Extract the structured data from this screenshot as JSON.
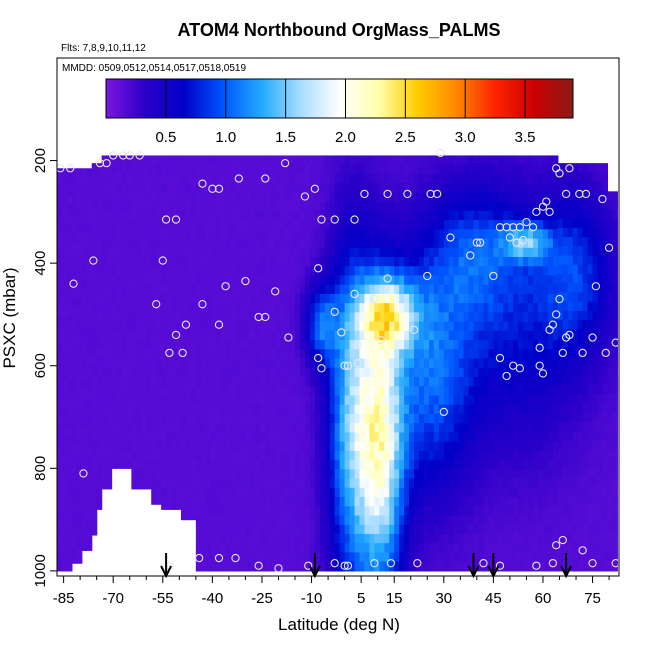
{
  "chart_data": {
    "type": "heatmap",
    "title": "ATOM4 Northbound OrgMass_PALMS",
    "flights_note": "Flts: 7,8,9,10,11,12",
    "dates_note": "MMDD: 0509,0512,0514,0517,0518,0519",
    "xlabel": "Latitude (deg N)",
    "ylabel": "PSXC (mbar)",
    "xlim": [
      -87,
      83
    ],
    "ylim": [
      1010,
      0
    ],
    "x_ticks": [
      -85,
      -70,
      -55,
      -40,
      -25,
      -10,
      5,
      15,
      30,
      45,
      60,
      75
    ],
    "x_tick_labels": [
      "-85",
      "-70",
      "-55",
      "-40",
      "-25",
      "-10",
      "5",
      "15",
      "30",
      "45",
      "60",
      "75"
    ],
    "y_ticks": [
      200,
      400,
      600,
      800,
      1000
    ],
    "y_tick_labels": [
      "200",
      "400",
      "600",
      "800",
      "1000"
    ],
    "colorbar": {
      "min": 0.0,
      "max": 3.9,
      "ticks": [
        0.5,
        1.0,
        1.5,
        2.0,
        2.5,
        3.0,
        3.5
      ],
      "tick_labels": [
        "0.5",
        "1.0",
        "1.5",
        "2.0",
        "2.5",
        "3.0",
        "3.5"
      ],
      "colors": [
        "#7b16e0",
        "#2a00c8",
        "#0000c8",
        "#0055ff",
        "#22aaff",
        "#a8dcff",
        "#ffffff",
        "#ffffaa",
        "#ffcc00",
        "#ff8800",
        "#ff2200",
        "#cc0000",
        "#8b1a1a"
      ]
    },
    "arrows_latitude": [
      -54,
      -9,
      39,
      45,
      67
    ],
    "field": {
      "background_value": 0.15,
      "plumes": [
        {
          "lat": -7,
          "p": 520,
          "value": 0.8,
          "sigma_lat": 3.5,
          "sigma_p": 55
        },
        {
          "lat": 2,
          "p": 700,
          "value": 1.2,
          "sigma_lat": 5,
          "sigma_p": 230
        },
        {
          "lat": 11,
          "p": 760,
          "value": 1.7,
          "sigma_lat": 5,
          "sigma_p": 200
        },
        {
          "lat": 13,
          "p": 500,
          "value": 1.45,
          "sigma_lat": 6,
          "sigma_p": 50
        },
        {
          "lat": 26,
          "p": 600,
          "value": 0.85,
          "sigma_lat": 9,
          "sigma_p": 170
        },
        {
          "lat": 40,
          "p": 380,
          "value": 0.55,
          "sigma_lat": 9,
          "sigma_p": 90
        },
        {
          "lat": 55,
          "p": 360,
          "value": 0.95,
          "sigma_lat": 5,
          "sigma_p": 25
        },
        {
          "lat": 70,
          "p": 420,
          "value": 0.6,
          "sigma_lat": 8,
          "sigma_p": 110
        },
        {
          "lat": 52,
          "p": 520,
          "value": 0.5,
          "sigma_lat": 14,
          "sigma_p": 170
        }
      ],
      "coverage": [
        [
          -87,
          215,
          1000
        ],
        [
          -85,
          215,
          1000
        ],
        [
          -83,
          215,
          985
        ],
        [
          -80,
          215,
          960
        ],
        [
          -77,
          205,
          930
        ],
        [
          -75,
          205,
          880
        ],
        [
          -73,
          190,
          840
        ],
        [
          -70,
          190,
          800
        ],
        [
          -64,
          190,
          840
        ],
        [
          -58,
          190,
          870
        ],
        [
          -55,
          190,
          880
        ],
        [
          -50,
          190,
          900
        ],
        [
          -45,
          190,
          1000
        ],
        [
          60,
          190,
          1000
        ],
        [
          64,
          205,
          1000
        ],
        [
          69,
          205,
          1000
        ],
        [
          75,
          205,
          1000
        ],
        [
          80,
          260,
          1000
        ],
        [
          82,
          260,
          1000
        ]
      ]
    },
    "points": [
      [
        -86,
        215
      ],
      [
        -83,
        215
      ],
      [
        -74,
        205
      ],
      [
        -72,
        205
      ],
      [
        -70,
        190
      ],
      [
        -67,
        190
      ],
      [
        -65,
        190
      ],
      [
        -62,
        190
      ],
      [
        -54,
        315
      ],
      [
        -51,
        315
      ],
      [
        -43,
        245
      ],
      [
        -40,
        255
      ],
      [
        -38,
        255
      ],
      [
        -32,
        235
      ],
      [
        -24,
        235
      ],
      [
        -18,
        205
      ],
      [
        -12,
        270
      ],
      [
        -9,
        255
      ],
      [
        -7,
        315
      ],
      [
        -3,
        315
      ],
      [
        3,
        315
      ],
      [
        6,
        265
      ],
      [
        13,
        265
      ],
      [
        19,
        265
      ],
      [
        26,
        265
      ],
      [
        28,
        265
      ],
      [
        29,
        185
      ],
      [
        -55,
        395
      ],
      [
        -57,
        480
      ],
      [
        -53,
        575
      ],
      [
        -51,
        540
      ],
      [
        -49,
        575
      ],
      [
        -48,
        520
      ],
      [
        -43,
        480
      ],
      [
        -38,
        520
      ],
      [
        -36,
        445
      ],
      [
        -30,
        435
      ],
      [
        -26,
        505
      ],
      [
        -24,
        505
      ],
      [
        -21,
        455
      ],
      [
        -17,
        545
      ],
      [
        -8,
        410
      ],
      [
        -3,
        495
      ],
      [
        -1,
        535
      ],
      [
        1,
        600
      ],
      [
        3,
        460
      ],
      [
        9,
        470
      ],
      [
        13,
        430
      ],
      [
        21,
        530
      ],
      [
        -8,
        585
      ],
      [
        -7,
        605
      ],
      [
        0,
        600
      ],
      [
        4,
        560
      ],
      [
        4,
        595
      ],
      [
        11,
        550
      ],
      [
        25,
        425
      ],
      [
        30,
        690
      ],
      [
        32,
        350
      ],
      [
        38,
        385
      ],
      [
        40,
        360
      ],
      [
        41,
        360
      ],
      [
        45,
        425
      ],
      [
        47,
        330
      ],
      [
        49,
        330
      ],
      [
        50,
        350
      ],
      [
        51,
        330
      ],
      [
        52,
        360
      ],
      [
        53,
        330
      ],
      [
        54,
        355
      ],
      [
        55,
        320
      ],
      [
        57,
        330
      ],
      [
        58,
        300
      ],
      [
        60,
        290
      ],
      [
        61,
        280
      ],
      [
        62,
        300
      ],
      [
        64,
        215
      ],
      [
        65,
        225
      ],
      [
        67,
        265
      ],
      [
        68,
        215
      ],
      [
        71,
        265
      ],
      [
        73,
        265
      ],
      [
        76,
        445
      ],
      [
        80,
        370
      ],
      [
        78,
        275
      ],
      [
        62,
        530
      ],
      [
        63,
        520
      ],
      [
        64,
        500
      ],
      [
        65,
        470
      ],
      [
        66,
        575
      ],
      [
        67,
        545
      ],
      [
        59,
        565
      ],
      [
        59,
        600
      ],
      [
        60,
        615
      ],
      [
        47,
        585
      ],
      [
        49,
        620
      ],
      [
        51,
        600
      ],
      [
        53,
        605
      ],
      [
        68,
        540
      ],
      [
        72,
        575
      ],
      [
        75,
        545
      ],
      [
        79,
        575
      ],
      [
        82,
        555
      ],
      [
        -53,
        990
      ],
      [
        -44,
        975
      ],
      [
        -38,
        975
      ],
      [
        -33,
        975
      ],
      [
        -26,
        990
      ],
      [
        -20,
        995
      ],
      [
        -11,
        990
      ],
      [
        -3,
        985
      ],
      [
        1,
        990
      ],
      [
        9,
        985
      ],
      [
        14,
        985
      ],
      [
        22,
        985
      ],
      [
        42,
        985
      ],
      [
        47,
        990
      ],
      [
        58,
        990
      ],
      [
        63,
        985
      ],
      [
        64,
        950
      ],
      [
        66,
        940
      ],
      [
        72,
        960
      ],
      [
        75,
        985
      ],
      [
        82,
        985
      ],
      [
        -82,
        440
      ],
      [
        -76,
        395
      ],
      [
        -79,
        810
      ],
      [
        0,
        990
      ]
    ]
  }
}
